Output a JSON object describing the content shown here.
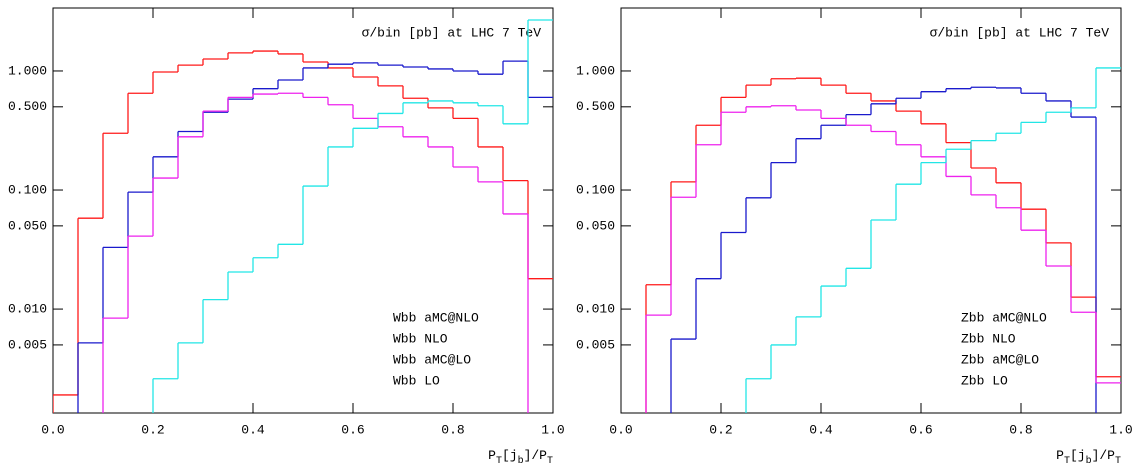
{
  "chart_data": [
    {
      "type": "histogram",
      "annotation": "σ/bin [pb]  at LHC 7 TeV",
      "x_label_parts": [
        "P",
        "T",
        "[j",
        "b",
        "]/P",
        "T"
      ],
      "bins": [
        0,
        0.05,
        0.1,
        0.15,
        0.2,
        0.25,
        0.3,
        0.35,
        0.4,
        0.45,
        0.5,
        0.55,
        0.6,
        0.65,
        0.7,
        0.75,
        0.8,
        0.85,
        0.9,
        0.95,
        1.0
      ],
      "log_y": true,
      "xlim": [
        0,
        1
      ],
      "ylim": [
        0.00134,
        3.38
      ],
      "xticks": [
        {
          "value": 0,
          "label": "0.0"
        },
        {
          "value": 0.2,
          "label": "0.2"
        },
        {
          "value": 0.4,
          "label": "0.4"
        },
        {
          "value": 0.6,
          "label": "0.6"
        },
        {
          "value": 0.8,
          "label": "0.8"
        },
        {
          "value": 1,
          "label": "1.0"
        }
      ],
      "yticks": [
        {
          "value": 0.005,
          "label": "0.005"
        },
        {
          "value": 0.01,
          "label": "0.010"
        },
        {
          "value": 0.05,
          "label": "0.050"
        },
        {
          "value": 0.1,
          "label": "0.100"
        },
        {
          "value": 0.5,
          "label": "0.500"
        },
        {
          "value": 1,
          "label": "1.000"
        }
      ],
      "legend": "lower right",
      "series": [
        {
          "name": "Wbb aMC@NLO",
          "color": "#ff1a1a",
          "values": [
            0.0019,
            0.058,
            0.3,
            0.65,
            0.98,
            1.12,
            1.26,
            1.42,
            1.47,
            1.39,
            1.19,
            1.06,
            0.89,
            0.75,
            0.59,
            0.49,
            0.4,
            0.23,
            0.12,
            0.018
          ]
        },
        {
          "name": "Wbb NLO",
          "color": "#1a1acc",
          "values": [
            null,
            0.0052,
            0.033,
            0.096,
            0.19,
            0.31,
            0.45,
            0.58,
            0.71,
            0.84,
            1.06,
            1.14,
            1.17,
            1.12,
            1.08,
            1.04,
            1.0,
            0.94,
            1.21,
            0.6
          ]
        },
        {
          "name": "Wbb aMC@LO",
          "color": "#ee22ee",
          "values": [
            null,
            null,
            0.0084,
            0.041,
            0.126,
            0.28,
            0.46,
            0.6,
            0.64,
            0.65,
            0.6,
            0.52,
            0.4,
            0.34,
            0.28,
            0.23,
            0.156,
            0.117,
            0.063,
            null
          ]
        },
        {
          "name": "Wbb LO",
          "color": "#22e6e6",
          "values": [
            null,
            null,
            null,
            null,
            0.0026,
            0.0052,
            0.012,
            0.0205,
            0.027,
            0.035,
            0.108,
            0.23,
            0.33,
            0.44,
            0.54,
            0.56,
            0.54,
            0.51,
            0.36,
            2.68
          ]
        }
      ]
    },
    {
      "type": "histogram",
      "annotation": "σ/bin [pb]  at LHC 7 TeV",
      "x_label_parts": [
        "P",
        "T",
        "[j",
        "b",
        "]/P",
        "T"
      ],
      "bins": [
        0,
        0.05,
        0.1,
        0.15,
        0.2,
        0.25,
        0.3,
        0.35,
        0.4,
        0.45,
        0.5,
        0.55,
        0.6,
        0.65,
        0.7,
        0.75,
        0.8,
        0.85,
        0.9,
        0.95,
        1.0
      ],
      "log_y": true,
      "xlim": [
        0,
        1
      ],
      "ylim": [
        0.00134,
        3.38
      ],
      "xticks": [
        {
          "value": 0,
          "label": "0.0"
        },
        {
          "value": 0.2,
          "label": "0.2"
        },
        {
          "value": 0.4,
          "label": "0.4"
        },
        {
          "value": 0.6,
          "label": "0.6"
        },
        {
          "value": 0.8,
          "label": "0.8"
        },
        {
          "value": 1,
          "label": "1.0"
        }
      ],
      "yticks": [
        {
          "value": 0.005,
          "label": "0.005"
        },
        {
          "value": 0.01,
          "label": "0.010"
        },
        {
          "value": 0.05,
          "label": "0.050"
        },
        {
          "value": 0.1,
          "label": "0.100"
        },
        {
          "value": 0.5,
          "label": "0.500"
        },
        {
          "value": 1,
          "label": "1.000"
        }
      ],
      "legend": "lower right",
      "series": [
        {
          "name": "Zbb aMC@NLO",
          "color": "#ff1a1a",
          "values": [
            null,
            0.016,
            0.117,
            0.35,
            0.6,
            0.76,
            0.86,
            0.87,
            0.76,
            0.65,
            0.56,
            0.46,
            0.36,
            0.25,
            0.153,
            0.115,
            0.069,
            0.036,
            0.0126,
            0.0027
          ]
        },
        {
          "name": "Zbb NLO",
          "color": "#1a1acc",
          "values": [
            null,
            null,
            0.0056,
            0.018,
            0.044,
            0.086,
            0.17,
            0.27,
            0.35,
            0.43,
            0.53,
            0.59,
            0.67,
            0.71,
            0.73,
            0.72,
            0.65,
            0.56,
            0.41,
            null
          ]
        },
        {
          "name": "Zbb aMC@LO",
          "color": "#ee22ee",
          "values": [
            null,
            0.0089,
            0.087,
            0.24,
            0.45,
            0.5,
            0.51,
            0.47,
            0.4,
            0.35,
            0.31,
            0.24,
            0.19,
            0.13,
            0.091,
            0.071,
            0.046,
            0.023,
            0.0094,
            0.0024
          ]
        },
        {
          "name": "Zbb LO",
          "color": "#22e6e6",
          "values": [
            null,
            null,
            null,
            null,
            null,
            0.0026,
            0.005,
            0.0086,
            0.0156,
            0.022,
            0.056,
            0.112,
            0.17,
            0.22,
            0.26,
            0.3,
            0.37,
            0.45,
            0.49,
            1.06
          ]
        }
      ]
    }
  ]
}
